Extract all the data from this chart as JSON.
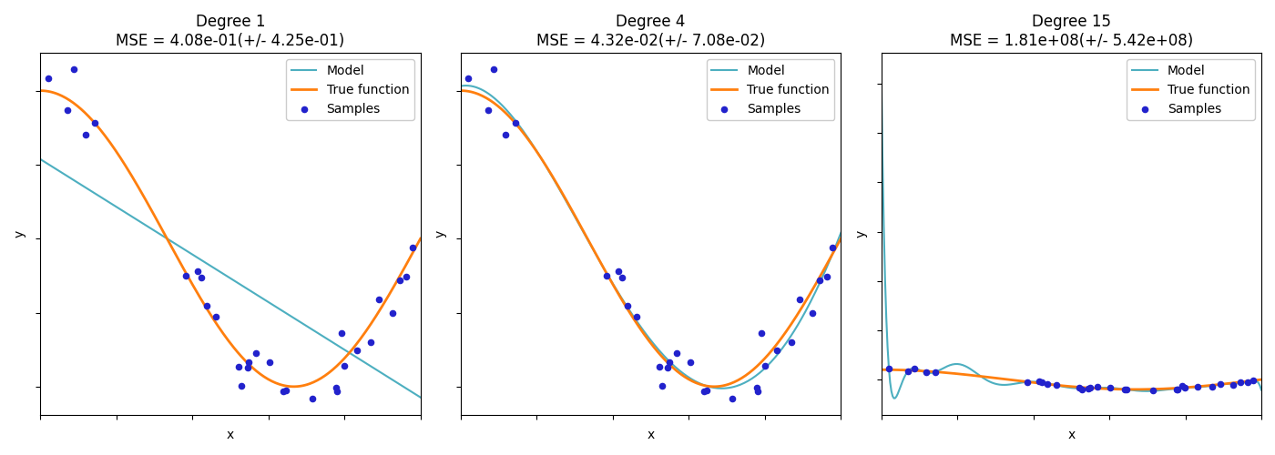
{
  "degrees": [
    1,
    4,
    15
  ],
  "titles": [
    "Degree 1",
    "Degree 4",
    "Degree 15"
  ],
  "mse_labels": [
    "MSE = 4.08e-01(+/- 4.25e-01)",
    "MSE = 4.32e-02(+/- 7.08e-02)",
    "MSE = 1.81e+08(+/- 5.42e+08)"
  ],
  "n_samples": 30,
  "random_seed": 0,
  "model_color": "#4dafc0",
  "true_color": "#ff7f0e",
  "sample_color": "#2222cc",
  "legend_labels": [
    "Model",
    "True function",
    "Samples"
  ],
  "xlabel": "x",
  "ylabel": "y",
  "figsize": [
    14.0,
    5.0
  ],
  "dpi": 100
}
